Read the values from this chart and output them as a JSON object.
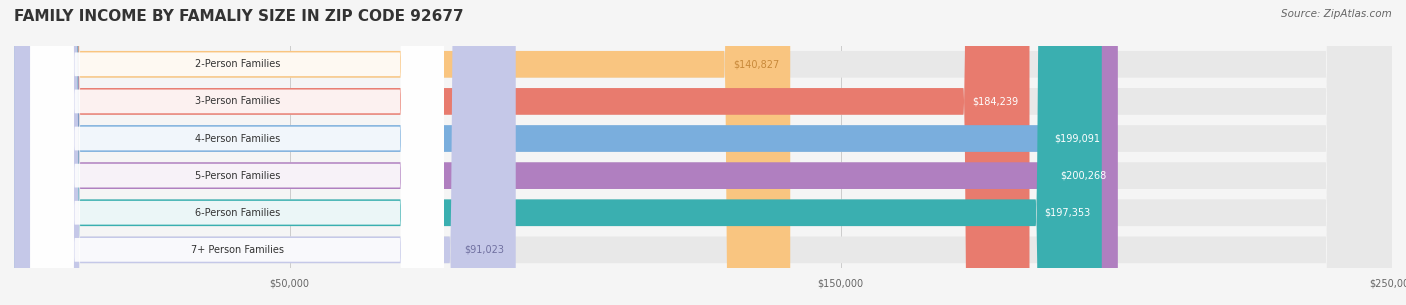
{
  "title": "FAMILY INCOME BY FAMALIY SIZE IN ZIP CODE 92677",
  "source": "Source: ZipAtlas.com",
  "categories": [
    "2-Person Families",
    "3-Person Families",
    "4-Person Families",
    "5-Person Families",
    "6-Person Families",
    "7+ Person Families"
  ],
  "values": [
    140827,
    184239,
    199091,
    200268,
    197353,
    91023
  ],
  "bar_colors": [
    "#f9c580",
    "#e87b6e",
    "#7aaedd",
    "#b07fc0",
    "#3aafb0",
    "#c5c8e8"
  ],
  "label_colors": [
    "#c8893a",
    "#ffffff",
    "#ffffff",
    "#ffffff",
    "#ffffff",
    "#7070a0"
  ],
  "value_labels": [
    "$140,827",
    "$184,239",
    "$199,091",
    "$200,268",
    "$197,353",
    "$91,023"
  ],
  "xlim": [
    0,
    250000
  ],
  "xticks": [
    0,
    50000,
    150000,
    250000
  ],
  "xtick_labels": [
    "",
    "$50,000",
    "$150,000",
    "$250,000"
  ],
  "background_color": "#f5f5f5",
  "bar_bg_color": "#e8e8e8",
  "title_fontsize": 11,
  "source_fontsize": 7.5,
  "label_fontsize": 7,
  "value_fontsize": 7
}
